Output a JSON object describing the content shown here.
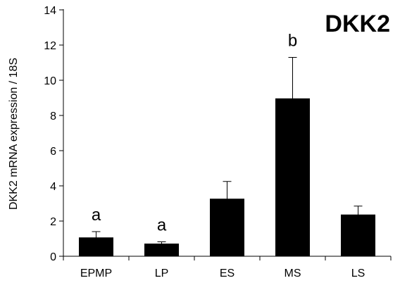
{
  "chart_data": {
    "type": "bar",
    "title": "DKK2",
    "xlabel": "",
    "ylabel": "DKK2 mRNA expression / 18S",
    "categories": [
      "EPMP",
      "LP",
      "ES",
      "MS",
      "LS"
    ],
    "values": [
      1.05,
      0.7,
      3.25,
      8.95,
      2.35
    ],
    "error_upper": [
      0.35,
      0.12,
      1.0,
      2.35,
      0.5
    ],
    "significance_labels": [
      "a",
      "a",
      "",
      "b",
      ""
    ],
    "ylim": [
      0,
      14
    ],
    "yticks": [
      "0",
      "2",
      "4",
      "6",
      "8",
      "10",
      "12",
      "14"
    ],
    "bar_color": "#000000",
    "grid": false
  }
}
